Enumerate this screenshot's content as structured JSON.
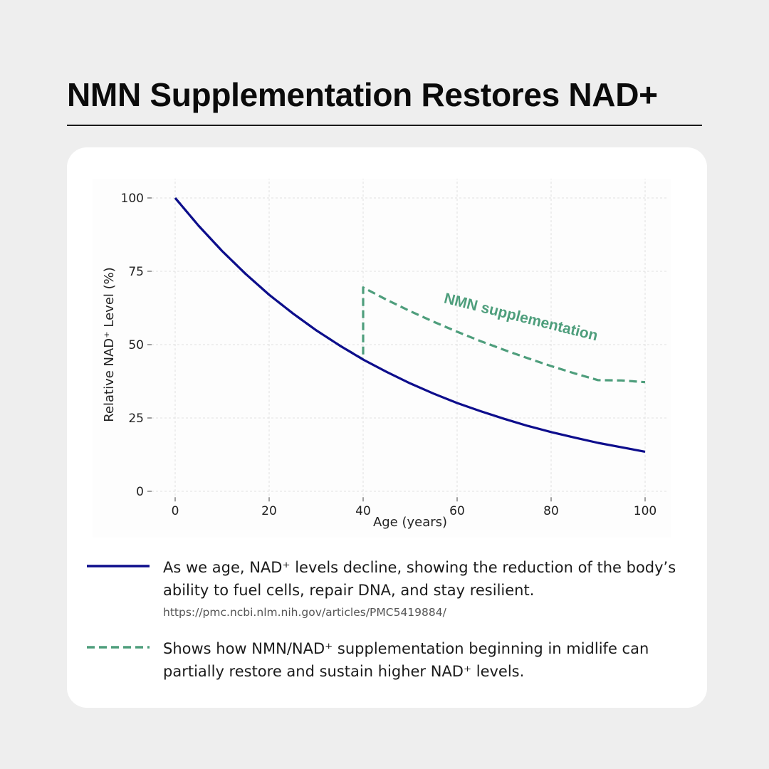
{
  "page": {
    "title": "NMN Supplementation Restores NAD+"
  },
  "chart_data": {
    "type": "line",
    "title": "",
    "xlabel": "Age (years)",
    "ylabel": "Relative NAD⁺ Level (%)",
    "xlim": [
      -5,
      105
    ],
    "ylim": [
      -2,
      107
    ],
    "xticks": [
      0,
      20,
      40,
      60,
      80,
      100
    ],
    "yticks": [
      0,
      25,
      50,
      75,
      100
    ],
    "grid": true,
    "series": [
      {
        "style": "solid",
        "color": "#0d0d8c",
        "x": [
          0,
          5,
          10,
          15,
          20,
          25,
          30,
          35,
          40,
          45,
          50,
          55,
          60,
          65,
          70,
          75,
          80,
          85,
          90,
          95,
          100
        ],
        "y": [
          100,
          90.5,
          81.9,
          74.1,
          67.0,
          60.7,
          54.9,
          49.7,
          44.9,
          40.7,
          36.8,
          33.3,
          30.1,
          27.3,
          24.7,
          22.3,
          20.2,
          18.3,
          16.5,
          15.0,
          13.5
        ]
      },
      {
        "style": "dashed",
        "color": "#4e9e7c",
        "x": [
          0,
          5,
          10,
          15,
          20,
          25,
          30,
          35,
          40,
          40,
          45,
          50,
          55,
          60,
          65,
          70,
          75,
          80,
          85,
          90,
          95,
          100
        ],
        "y": [
          100,
          90.5,
          81.9,
          74.1,
          67.0,
          60.7,
          54.9,
          49.7,
          45.0,
          69.5,
          65.3,
          61.4,
          57.8,
          54.4,
          51.2,
          48.2,
          45.4,
          42.7,
          40.2,
          37.9,
          37.8,
          37.2
        ]
      }
    ],
    "annotations": [
      {
        "text": "NMN supplementation",
        "color": "#4e9e7c"
      }
    ]
  },
  "legend": {
    "items": [
      {
        "line_style": "solid",
        "color": "#0d0d8c",
        "text": "As we age, NAD⁺ levels decline, showing the reduction of the body’s ability to fuel cells, repair DNA, and stay resilient.",
        "source": "https://pmc.ncbi.nlm.nih.gov/articles/PMC5419884/"
      },
      {
        "line_style": "dashed",
        "color": "#4e9e7c",
        "text": "Shows how NMN/NAD⁺ supplementation beginning in midlife can partially restore and sustain higher NAD⁺ levels."
      }
    ]
  }
}
